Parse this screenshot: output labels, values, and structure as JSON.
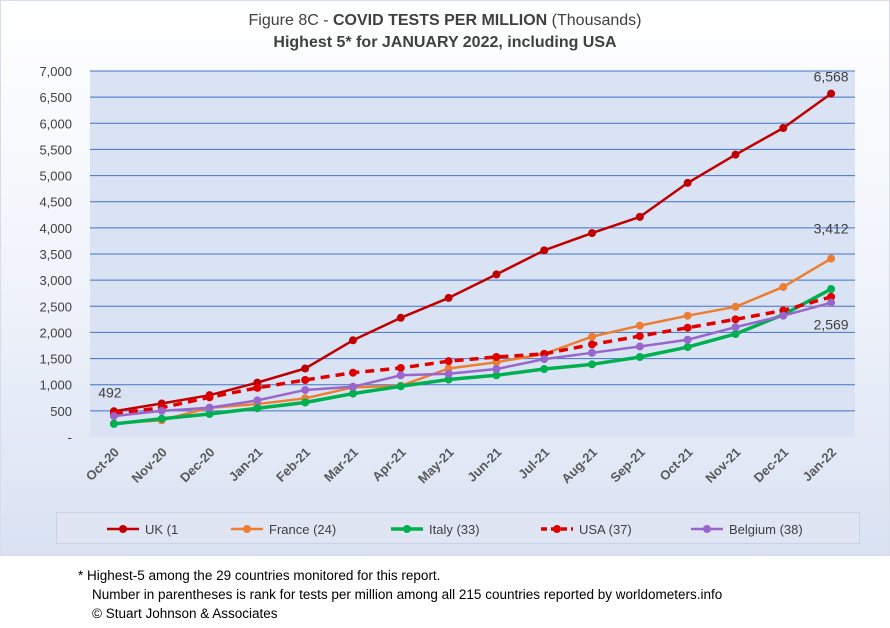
{
  "figure": {
    "title_prefix": "Figure 8C - ",
    "title_bold": "COVID TESTS PER MILLION",
    "title_suffix": " (Thousands)",
    "subtitle": "Highest 5* for JANUARY 2022, including USA"
  },
  "footnotes": {
    "line1": "* Highest-5 among the 29 countries monitored for this report.",
    "line2": "Number in parentheses is rank for tests per million among all 215 countries reported by worldometers.info",
    "line3": "© Stuart Johnson & Associates"
  },
  "chart_data": {
    "type": "line",
    "title": "Figure 8C - COVID TESTS PER MILLION (Thousands)",
    "subtitle": "Highest 5* for JANUARY 2022, including USA",
    "categories": [
      "Oct-20",
      "Nov-20",
      "Dec-20",
      "Jan-21",
      "Feb-21",
      "Mar-21",
      "Apr-21",
      "May-21",
      "Jun-21",
      "Jul-21",
      "Aug-21",
      "Sep-21",
      "Oct-21",
      "Nov-21",
      "Dec-21",
      "Jan-22"
    ],
    "ylim": [
      0,
      7000
    ],
    "yticks": [
      0,
      500,
      1000,
      1500,
      2000,
      2500,
      3000,
      3500,
      4000,
      4500,
      5000,
      5500,
      6000,
      6500,
      7000
    ],
    "ytick_labels": [
      "-",
      "500",
      "1,000",
      "1,500",
      "2,000",
      "2,500",
      "3,000",
      "3,500",
      "4,000",
      "4,500",
      "5,000",
      "5,500",
      "6,000",
      "6,500",
      "7,000"
    ],
    "grid": true,
    "legend_position": "bottom",
    "series": [
      {
        "name": "UK (1",
        "color": "#c00000",
        "dash": false,
        "width": 2.5,
        "values": [
          492,
          640,
          800,
          1040,
          1310,
          1850,
          2280,
          2660,
          3110,
          3570,
          3900,
          4210,
          4860,
          5400,
          5910,
          6568
        ]
      },
      {
        "name": "France (24)",
        "color": "#ed7d31",
        "dash": false,
        "width": 2.5,
        "values": [
          260,
          320,
          560,
          630,
          740,
          950,
          980,
          1310,
          1430,
          1590,
          1920,
          2130,
          2320,
          2490,
          2870,
          3412
        ]
      },
      {
        "name": "Italy (33)",
        "color": "#00b050",
        "dash": false,
        "width": 3.5,
        "values": [
          250,
          350,
          440,
          550,
          660,
          830,
          970,
          1100,
          1180,
          1300,
          1390,
          1530,
          1720,
          1970,
          2340,
          2830
        ]
      },
      {
        "name": "USA (37)",
        "color": "#e00000",
        "dash": true,
        "width": 3.5,
        "values": [
          450,
          560,
          760,
          940,
          1090,
          1230,
          1320,
          1450,
          1530,
          1590,
          1770,
          1930,
          2090,
          2250,
          2420,
          2680
        ]
      },
      {
        "name": "Belgium (38)",
        "color": "#9966cc",
        "dash": false,
        "width": 2.5,
        "values": [
          400,
          500,
          560,
          700,
          900,
          960,
          1180,
          1210,
          1300,
          1490,
          1610,
          1730,
          1860,
          2100,
          2320,
          2569
        ]
      }
    ],
    "annotations": [
      {
        "series": 0,
        "index": 0,
        "text": "492"
      },
      {
        "series": 0,
        "index": 15,
        "text": "6,568"
      },
      {
        "series": 1,
        "index": 15,
        "text": "3,412"
      },
      {
        "series": 4,
        "index": 15,
        "text": "2,569"
      }
    ]
  }
}
